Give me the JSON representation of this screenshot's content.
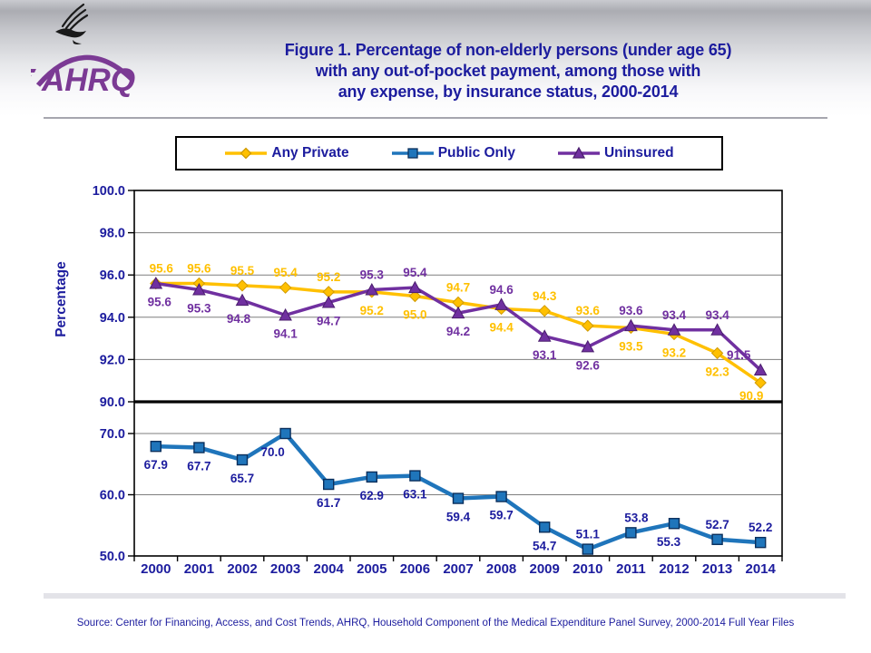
{
  "header": {
    "logo_text": "AHRQ",
    "title_lines": [
      "Figure 1. Percentage of non-elderly persons (under age 65)",
      "with any out-of-pocket payment, among those with",
      "any expense, by insurance status, 2000-2014"
    ]
  },
  "source": "Source: Center for Financing, Access, and Cost Trends, AHRQ, Household Component of the Medical Expenditure Panel Survey,  2000-2014 Full Year Files",
  "chart_data": {
    "type": "line",
    "title": "Percentage of non-elderly persons with any out-of-pocket payment, among those with any expense, by insurance status, 2000-2014",
    "ylabel": "Percentage",
    "xlabel": "",
    "grid": true,
    "legend_position": "top",
    "x": [
      2000,
      2001,
      2002,
      2003,
      2004,
      2005,
      2006,
      2007,
      2008,
      2009,
      2010,
      2011,
      2012,
      2013,
      2014
    ],
    "axis": {
      "broken_y_axis": true,
      "top_panel": {
        "range": [
          90,
          100
        ],
        "ticks": [
          100.0,
          98.0,
          96.0,
          94.0,
          92.0,
          90.0
        ]
      },
      "bottom_panel": {
        "range": [
          50,
          70
        ],
        "ticks": [
          70.0,
          60.0,
          50.0
        ]
      },
      "break_line_value": 90
    },
    "colors": {
      "text_navy": "#1c1c9e",
      "grid": "#7f7f7f",
      "axis": "#000000"
    },
    "series": [
      {
        "name": "Any Private",
        "marker": "diamond",
        "color": "#FFC000",
        "marker_stroke": "#d09a00",
        "values": [
          95.6,
          95.6,
          95.5,
          95.4,
          95.2,
          95.2,
          95.0,
          94.7,
          94.4,
          94.3,
          93.6,
          93.5,
          93.2,
          92.3,
          90.9
        ],
        "label_side": [
          "a",
          "a",
          "a",
          "a",
          "a",
          "b",
          "b",
          "a",
          "b",
          "a",
          "a",
          "b",
          "b",
          "b",
          "b"
        ],
        "label_dx": [
          6,
          0,
          0,
          0,
          0,
          0,
          0,
          0,
          0,
          0,
          0,
          0,
          0,
          0,
          -10
        ],
        "label_dy": [
          0,
          0,
          0,
          0,
          0,
          0,
          0,
          0,
          0,
          0,
          0,
          0,
          0,
          0,
          -6
        ]
      },
      {
        "name": "Public Only",
        "marker": "square",
        "color": "#1F75BB",
        "label_color": "#1c1c9e",
        "marker_stroke": "#0a2f5c",
        "values": [
          67.9,
          67.7,
          65.7,
          70.0,
          61.7,
          62.9,
          63.1,
          59.4,
          59.7,
          54.7,
          51.1,
          53.8,
          55.3,
          52.7,
          52.2
        ],
        "label_side": [
          "b",
          "b",
          "b",
          "b",
          "b",
          "b",
          "b",
          "b",
          "b",
          "b",
          "a",
          "a",
          "b",
          "a",
          "a"
        ],
        "label_dx": [
          0,
          0,
          0,
          -14,
          0,
          0,
          0,
          0,
          0,
          0,
          0,
          6,
          -6,
          0,
          0
        ],
        "label_dy": [
          0,
          0,
          0,
          0,
          0,
          0,
          0,
          0,
          0,
          0,
          0,
          0,
          0,
          0,
          0
        ]
      },
      {
        "name": "Uninsured",
        "marker": "triangle",
        "color": "#7030A0",
        "marker_stroke": "#4b1e6e",
        "values": [
          95.6,
          95.3,
          94.8,
          94.1,
          94.7,
          95.3,
          95.4,
          94.2,
          94.6,
          93.1,
          92.6,
          93.6,
          93.4,
          93.4,
          91.5
        ],
        "label_side": [
          "b",
          "b",
          "b",
          "b",
          "b",
          "a",
          "a",
          "b",
          "a",
          "b",
          "b",
          "a",
          "a",
          "a",
          "a"
        ],
        "label_dx": [
          4,
          0,
          -4,
          0,
          0,
          0,
          0,
          0,
          0,
          0,
          0,
          0,
          0,
          0,
          -24
        ],
        "label_dy": [
          0,
          0,
          0,
          0,
          0,
          0,
          0,
          0,
          0,
          0,
          0,
          0,
          0,
          0,
          0
        ]
      }
    ]
  }
}
